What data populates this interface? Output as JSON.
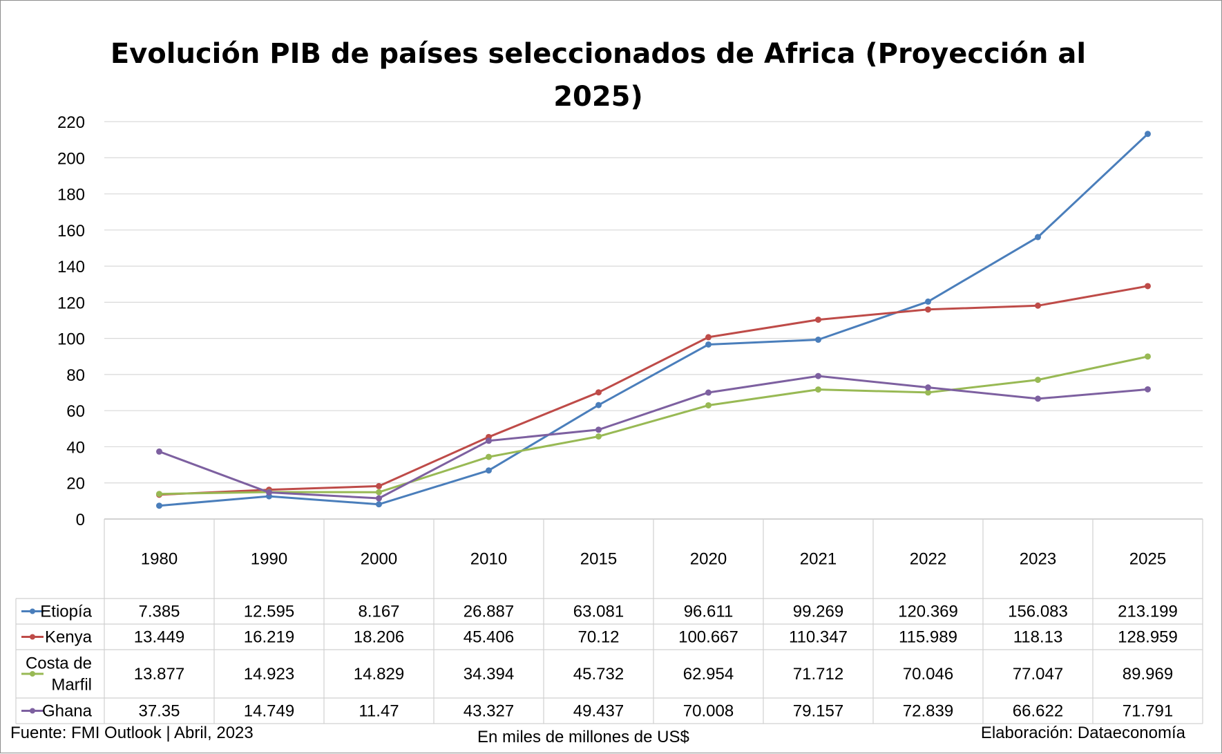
{
  "chart_data": {
    "type": "line",
    "title": "Evolución PIB de países seleccionados de Africa (Proyección al 2025)",
    "title_lines": [
      "Evolución PIB de países seleccionados de Africa (Proyección al",
      "2025)"
    ],
    "categories": [
      "1980",
      "1990",
      "2000",
      "2010",
      "2015",
      "2020",
      "2021",
      "2022",
      "2023",
      "2025"
    ],
    "yticks": [
      0,
      20,
      40,
      60,
      80,
      100,
      120,
      140,
      160,
      180,
      200,
      220
    ],
    "ylim": [
      0,
      220
    ],
    "grid": true,
    "legend": "data-table",
    "series": [
      {
        "name": "Etiopía",
        "name_lines": [
          "Etiopía"
        ],
        "color": "#4a7ebb",
        "values": [
          7.385,
          12.595,
          8.167,
          26.887,
          63.081,
          96.611,
          99.269,
          120.369,
          156.083,
          213.199
        ],
        "labels": [
          "7.385",
          "12.595",
          "8.167",
          "26.887",
          "63.081",
          "96.611",
          "99.269",
          "120.369",
          "156.083",
          "213.199"
        ]
      },
      {
        "name": "Kenya",
        "name_lines": [
          "Kenya"
        ],
        "color": "#be4b48",
        "values": [
          13.449,
          16.219,
          18.206,
          45.406,
          70.12,
          100.667,
          110.347,
          115.989,
          118.13,
          128.959
        ],
        "labels": [
          "13.449",
          "16.219",
          "18.206",
          "45.406",
          "70.12",
          "100.667",
          "110.347",
          "115.989",
          "118.13",
          "128.959"
        ]
      },
      {
        "name": "Costa de Marfil",
        "name_lines": [
          "Costa de",
          "Marfil"
        ],
        "color": "#98b954",
        "values": [
          13.877,
          14.923,
          14.829,
          34.394,
          45.732,
          62.954,
          71.712,
          70.046,
          77.047,
          89.969
        ],
        "labels": [
          "13.877",
          "14.923",
          "14.829",
          "34.394",
          "45.732",
          "62.954",
          "71.712",
          "70.046",
          "77.047",
          "89.969"
        ]
      },
      {
        "name": "Ghana",
        "name_lines": [
          "Ghana"
        ],
        "color": "#7d60a0",
        "values": [
          37.35,
          14.749,
          11.47,
          43.327,
          49.437,
          70.008,
          79.157,
          72.839,
          66.622,
          71.791
        ],
        "labels": [
          "37.35",
          "14.749",
          "11.47",
          "43.327",
          "49.437",
          "70.008",
          "79.157",
          "72.839",
          "66.622",
          "71.791"
        ]
      }
    ]
  },
  "footer": {
    "source": "Fuente: FMI Outlook | Abril, 2023",
    "units": "En miles de millones de US$",
    "credit": "Elaboración: Dataeconomía"
  }
}
